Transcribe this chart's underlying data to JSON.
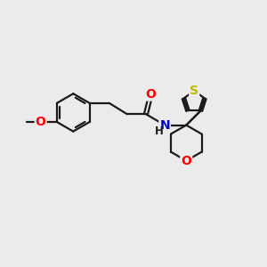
{
  "bg_color": "#ebebeb",
  "bond_color": "#1a1a1a",
  "bond_width": 1.6,
  "atom_colors": {
    "O": "#ff0000",
    "N": "#0000cc",
    "S": "#bbbb00",
    "C": "#1a1a1a",
    "H": "#1a1a1a"
  },
  "font_size_atom": 10,
  "font_size_h": 8.5
}
